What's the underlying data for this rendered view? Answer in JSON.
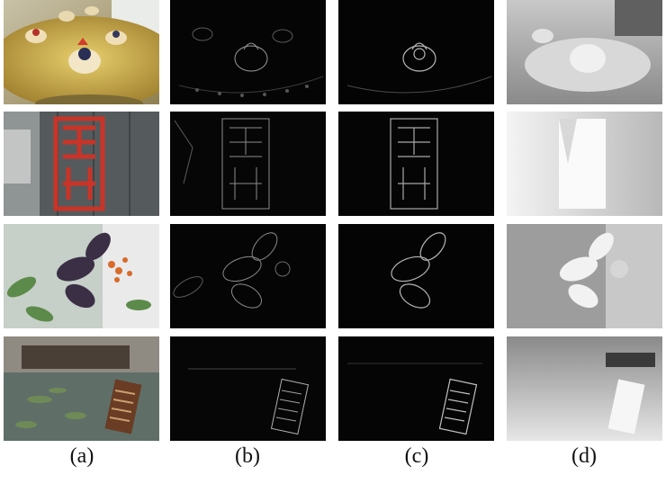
{
  "columns": [
    {
      "label": "(a)",
      "content": "rgb-photo"
    },
    {
      "label": "(b)",
      "content": "edge-map"
    },
    {
      "label": "(c)",
      "content": "edge-map"
    },
    {
      "label": "(d)",
      "content": "depth-map"
    }
  ],
  "rows": [
    {
      "scene": "dessert-tray"
    },
    {
      "scene": "red-seal-wall"
    },
    {
      "scene": "flower-leaves"
    },
    {
      "scene": "pool-sign"
    }
  ]
}
